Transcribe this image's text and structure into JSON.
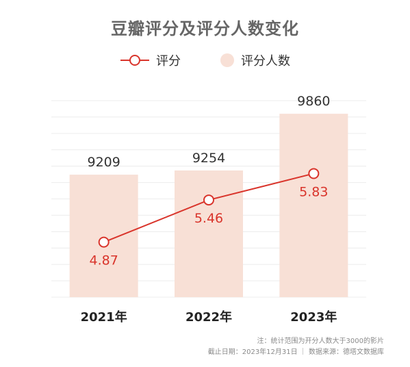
{
  "chart_data": {
    "type": "bar+line",
    "title": "豆瓣评分及评分人数变化",
    "categories": [
      "2021年",
      "2022年",
      "2023年"
    ],
    "series": [
      {
        "name": "评分人数",
        "type": "bar",
        "values": [
          9209,
          9254,
          9860
        ],
        "labels": [
          "9209",
          "9254",
          "9860"
        ]
      },
      {
        "name": "评分",
        "type": "line",
        "values": [
          4.87,
          5.46,
          5.83
        ],
        "labels": [
          "4.87",
          "5.46",
          "5.83"
        ]
      }
    ],
    "bar_range": [
      7900,
      10000
    ],
    "line_range": [
      4.1,
      6.85
    ],
    "grid": true,
    "legend_position": "top-center",
    "colors": {
      "bar": "#f8e0d6",
      "line": "#d9342b",
      "grid": "#ececec",
      "bar_label": "#333333",
      "line_label": "#d9342b"
    }
  },
  "legend": {
    "line_label": "评分",
    "bar_label": "评分人数"
  },
  "footnote": {
    "line1": "注：统计范围为开分人数大于3000的影片",
    "line2": "截止日期：2023年12月31日 ｜ 数据来源：德塔文数据库"
  }
}
